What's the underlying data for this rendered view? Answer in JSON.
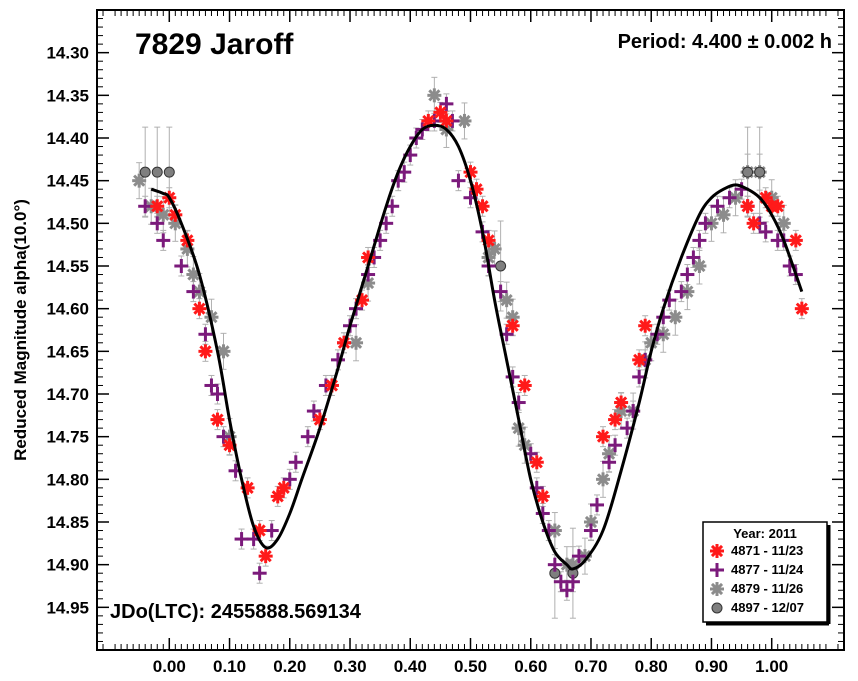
{
  "chart_data": {
    "type": "scatter",
    "title": "7829 Jaroff",
    "period_label": "Period: 4.400 ± 0.002 h",
    "jd_label": "JDo(LTC): 2455888.569134",
    "ylabel": "Reduced Magnitude alpha(10.0°)",
    "xlabel": "",
    "xlim": [
      -0.12,
      1.12
    ],
    "ylim": [
      14.25,
      15.0
    ],
    "y_inverted": true,
    "x_ticks": [
      "0.00",
      "0.10",
      "0.20",
      "0.30",
      "0.40",
      "0.50",
      "0.60",
      "0.70",
      "0.80",
      "0.90",
      "1.00"
    ],
    "x_tick_values": [
      0,
      0.1,
      0.2,
      0.3,
      0.4,
      0.5,
      0.6,
      0.7,
      0.8,
      0.9,
      1.0
    ],
    "y_ticks": [
      "14.30",
      "14.35",
      "14.40",
      "14.45",
      "14.50",
      "14.55",
      "14.60",
      "14.65",
      "14.70",
      "14.75",
      "14.80",
      "14.85",
      "14.90",
      "14.95"
    ],
    "y_tick_values": [
      14.3,
      14.35,
      14.4,
      14.45,
      14.5,
      14.55,
      14.6,
      14.65,
      14.7,
      14.75,
      14.8,
      14.85,
      14.9,
      14.95
    ],
    "legend": {
      "title": "Year: 2011",
      "placement": "bottom-right",
      "entries": [
        "4871 - 11/23",
        "4877 - 11/24",
        "4879 - 11/26",
        "4897 - 12/07"
      ]
    },
    "fit_curve": {
      "phase": [
        -0.03,
        -0.01,
        0.0,
        0.02,
        0.05,
        0.08,
        0.1,
        0.12,
        0.14,
        0.16,
        0.18,
        0.2,
        0.22,
        0.25,
        0.28,
        0.3,
        0.33,
        0.36,
        0.38,
        0.4,
        0.42,
        0.44,
        0.46,
        0.48,
        0.5,
        0.52,
        0.54,
        0.56,
        0.58,
        0.6,
        0.62,
        0.64,
        0.66,
        0.67,
        0.69,
        0.72,
        0.75,
        0.78,
        0.8,
        0.82,
        0.85,
        0.88,
        0.9,
        0.92,
        0.94,
        0.96,
        0.98,
        1.0,
        1.02,
        1.05
      ],
      "mag": [
        14.46,
        14.465,
        14.47,
        14.5,
        14.56,
        14.65,
        14.73,
        14.8,
        14.855,
        14.88,
        14.87,
        14.84,
        14.8,
        14.74,
        14.67,
        14.62,
        14.55,
        14.48,
        14.44,
        14.41,
        14.39,
        14.385,
        14.39,
        14.41,
        14.45,
        14.51,
        14.59,
        14.66,
        14.73,
        14.8,
        14.85,
        14.885,
        14.9,
        14.905,
        14.895,
        14.86,
        14.79,
        14.71,
        14.65,
        14.6,
        14.54,
        14.49,
        14.47,
        14.46,
        14.455,
        14.46,
        14.47,
        14.49,
        14.52,
        14.58
      ]
    },
    "series": [
      {
        "name": "4871 - 11/23",
        "color": "#ff1a1a",
        "marker": "star",
        "x": [
          -0.02,
          0.0,
          0.01,
          0.03,
          0.05,
          0.06,
          0.08,
          0.1,
          0.13,
          0.15,
          0.16,
          0.18,
          0.19,
          0.25,
          0.27,
          0.29,
          0.32,
          0.33,
          0.43,
          0.45,
          0.46,
          0.5,
          0.51,
          0.52,
          0.53,
          0.57,
          0.59,
          0.61,
          0.62,
          0.72,
          0.74,
          0.75,
          0.78,
          0.79,
          0.96,
          0.97,
          0.99,
          1.0,
          1.01,
          1.04,
          1.05
        ],
        "y": [
          14.48,
          14.47,
          14.49,
          14.52,
          14.6,
          14.65,
          14.73,
          14.76,
          14.81,
          14.86,
          14.89,
          14.82,
          14.81,
          14.73,
          14.69,
          14.64,
          14.59,
          14.54,
          14.38,
          14.37,
          14.38,
          14.44,
          14.46,
          14.48,
          14.52,
          14.62,
          14.69,
          14.78,
          14.82,
          14.75,
          14.73,
          14.71,
          14.66,
          14.62,
          14.48,
          14.5,
          14.47,
          14.48,
          14.48,
          14.52,
          14.6
        ]
      },
      {
        "name": "4877 - 11/24",
        "color": "#7b1a7b",
        "marker": "cross",
        "x": [
          -0.04,
          -0.02,
          -0.01,
          0.02,
          0.04,
          0.06,
          0.07,
          0.08,
          0.09,
          0.11,
          0.12,
          0.14,
          0.15,
          0.17,
          0.2,
          0.21,
          0.23,
          0.24,
          0.26,
          0.28,
          0.29,
          0.3,
          0.31,
          0.33,
          0.34,
          0.35,
          0.36,
          0.37,
          0.38,
          0.39,
          0.4,
          0.41,
          0.42,
          0.44,
          0.46,
          0.47,
          0.48,
          0.5,
          0.52,
          0.53,
          0.55,
          0.56,
          0.57,
          0.58,
          0.6,
          0.61,
          0.62,
          0.63,
          0.64,
          0.65,
          0.66,
          0.67,
          0.68,
          0.7,
          0.71,
          0.73,
          0.74,
          0.76,
          0.77,
          0.78,
          0.79,
          0.81,
          0.82,
          0.83,
          0.85,
          0.86,
          0.87,
          0.88,
          0.89,
          0.91,
          0.93,
          0.95,
          0.96,
          0.98,
          0.99,
          1.01,
          1.02,
          1.03,
          1.04
        ],
        "y": [
          14.48,
          14.5,
          14.52,
          14.55,
          14.58,
          14.63,
          14.69,
          14.7,
          14.75,
          14.79,
          14.87,
          14.87,
          14.91,
          14.86,
          14.8,
          14.78,
          14.75,
          14.72,
          14.69,
          14.66,
          14.64,
          14.62,
          14.6,
          14.56,
          14.54,
          14.52,
          14.5,
          14.48,
          14.45,
          14.44,
          14.42,
          14.4,
          14.39,
          14.38,
          14.36,
          14.38,
          14.45,
          14.47,
          14.51,
          14.55,
          14.58,
          14.63,
          14.68,
          14.71,
          14.77,
          14.81,
          14.84,
          14.86,
          14.9,
          14.92,
          14.93,
          14.92,
          14.89,
          14.86,
          14.83,
          14.78,
          14.76,
          14.74,
          14.72,
          14.68,
          14.66,
          14.63,
          14.61,
          14.59,
          14.58,
          14.56,
          14.54,
          14.52,
          14.5,
          14.48,
          14.47,
          14.46,
          14.48,
          14.5,
          14.51,
          14.52,
          14.52,
          14.55,
          14.56
        ]
      },
      {
        "name": "4879 - 11/26",
        "color": "#8c8c8c",
        "marker": "star",
        "x": [
          -0.05,
          -0.03,
          -0.01,
          0.01,
          0.03,
          0.04,
          0.05,
          0.07,
          0.09,
          0.1,
          0.31,
          0.33,
          0.44,
          0.46,
          0.49,
          0.53,
          0.54,
          0.56,
          0.57,
          0.58,
          0.59,
          0.64,
          0.66,
          0.67,
          0.69,
          0.7,
          0.72,
          0.73,
          0.75,
          0.77,
          0.79,
          0.8,
          0.82,
          0.84,
          0.86,
          0.88,
          0.9,
          0.92,
          0.94,
          0.96,
          0.98,
          1.0,
          1.02
        ],
        "y": [
          14.45,
          14.48,
          14.49,
          14.5,
          14.53,
          14.56,
          14.58,
          14.61,
          14.65,
          14.75,
          14.64,
          14.57,
          14.35,
          14.39,
          14.38,
          14.54,
          14.53,
          14.59,
          14.61,
          14.74,
          14.76,
          14.86,
          14.9,
          14.9,
          14.89,
          14.85,
          14.8,
          14.77,
          14.72,
          14.72,
          14.66,
          14.64,
          14.63,
          14.61,
          14.58,
          14.55,
          14.5,
          14.49,
          14.47,
          14.44,
          14.44,
          14.47,
          14.5
        ]
      },
      {
        "name": "4897 - 12/07",
        "color": "#7f7f7f",
        "marker": "circle",
        "x": [
          -0.04,
          -0.02,
          0.0,
          0.55,
          0.64,
          0.67,
          0.96,
          0.98
        ],
        "y": [
          14.44,
          14.44,
          14.44,
          14.55,
          14.91,
          14.91,
          14.44,
          14.44
        ]
      }
    ]
  }
}
